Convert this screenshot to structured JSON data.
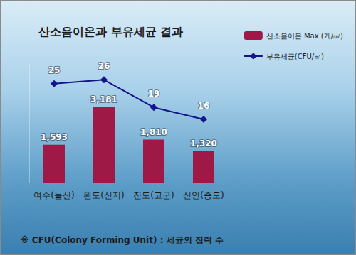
{
  "chart_data": {
    "type": "bar",
    "title": "산소음이온과 부유세균 결과",
    "annotations": [
      "※ CFU(Colony Forming Unit) : 세균의 집락 수"
    ],
    "categories": [
      "여수(돌산)",
      "완도(신지)",
      "진도(고군)",
      "신안(증도)"
    ],
    "series": [
      {
        "name": "산소음이온 Max (개/㎤)",
        "type": "bar",
        "color": "#9e1946",
        "values": [
          1593,
          3181,
          1810,
          1320
        ],
        "value_labels": [
          "1,593",
          "3,181",
          "1,810",
          "1,320"
        ]
      },
      {
        "name": "부유세균(CFU/㎥)",
        "type": "line",
        "color": "#14148c",
        "marker": "diamond",
        "axis": "y2",
        "values": [
          25,
          26,
          19,
          16
        ]
      }
    ],
    "ylim": [
      0,
      5000
    ],
    "y2lim": [
      0,
      30
    ],
    "legend": "upper right",
    "data_labels": true,
    "tick_labels": "x",
    "grid": false
  }
}
